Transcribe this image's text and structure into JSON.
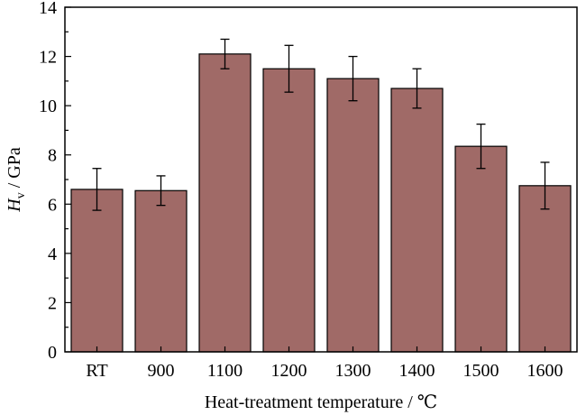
{
  "chart_data": {
    "type": "bar",
    "categories": [
      "RT",
      "900",
      "1100",
      "1200",
      "1300",
      "1400",
      "1500",
      "1600"
    ],
    "values": [
      6.6,
      6.55,
      12.1,
      11.5,
      11.1,
      10.7,
      8.35,
      6.75
    ],
    "errors": [
      0.85,
      0.6,
      0.6,
      0.95,
      0.9,
      0.8,
      0.9,
      0.95
    ],
    "xlabel": "Heat-treatment temperature / ℃",
    "ylabel": {
      "symbol": "H",
      "subscript": "v",
      "unit": " / GPa"
    },
    "ylim": [
      0,
      14
    ],
    "yticks": [
      "0",
      "2",
      "4",
      "6",
      "8",
      "10",
      "12",
      "14"
    ],
    "grid": false,
    "legend": "none",
    "bar_color": "#a06a67",
    "bar_edge_color": "#000000"
  }
}
